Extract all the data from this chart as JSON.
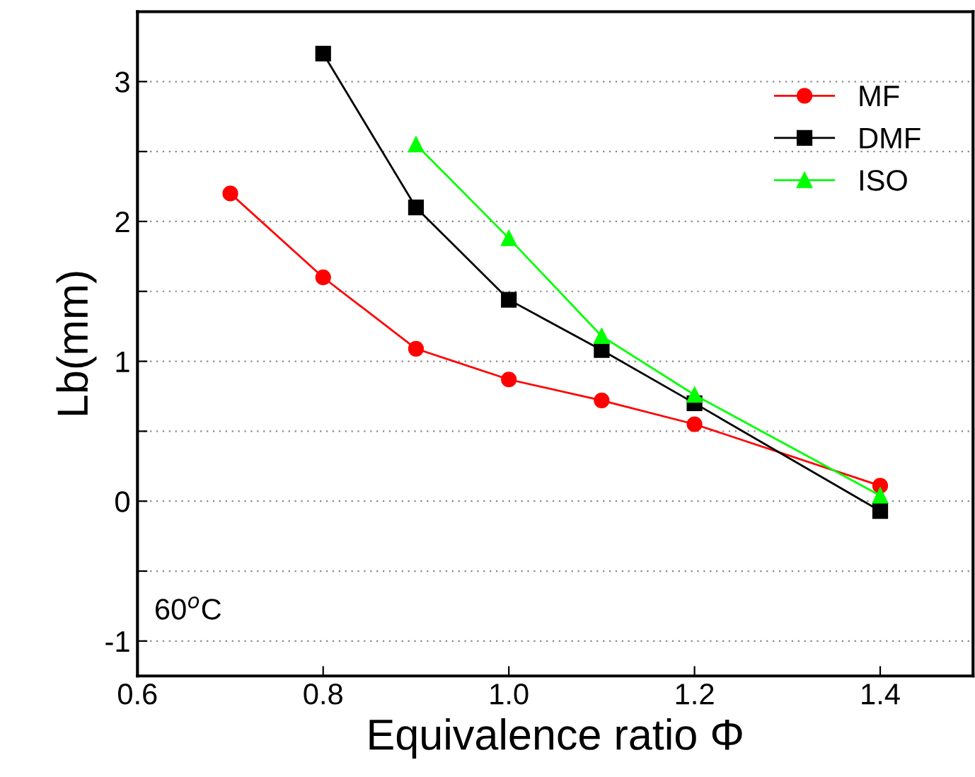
{
  "chart_data": {
    "type": "line",
    "xlabel": "Equivalence ratio Φ",
    "ylabel": "Lb(mm)",
    "xlim": [
      0.6,
      1.5
    ],
    "xticks": [
      0.6,
      0.8,
      {
        "value": 1.0,
        "label": "1.0"
      },
      1.2,
      1.4
    ],
    "ylim": [
      -1.25,
      3.5
    ],
    "yticks": [
      -1,
      {
        "value": -0.5,
        "label": null
      },
      0,
      {
        "value": 0.5,
        "label": null
      },
      1,
      {
        "value": 1.5,
        "label": null
      },
      2,
      {
        "value": 2.5,
        "label": null
      },
      3
    ],
    "grid": "y",
    "legend": "top right",
    "annotations": [
      "60$^{o}$C"
    ],
    "series": [
      {
        "name": "MF",
        "color": "#ff0000",
        "marker": "circle",
        "x": [
          0.7,
          0.8,
          0.9,
          1.0,
          1.1,
          1.2,
          1.4
        ],
        "values": [
          2.2,
          1.6,
          1.09,
          0.87,
          0.72,
          0.55,
          0.11
        ]
      },
      {
        "name": "DMF",
        "color": "#000000",
        "marker": "square",
        "x": [
          0.8,
          0.9,
          1.0,
          1.1,
          1.2,
          1.4
        ],
        "values": [
          3.2,
          2.1,
          1.44,
          1.08,
          0.7,
          -0.07
        ]
      },
      {
        "name": "ISO",
        "color": "#00ff00",
        "marker": "triangle",
        "x": [
          0.9,
          1.0,
          1.1,
          1.2,
          1.4
        ],
        "values": [
          2.55,
          1.88,
          1.18,
          0.76,
          0.04
        ]
      }
    ]
  }
}
